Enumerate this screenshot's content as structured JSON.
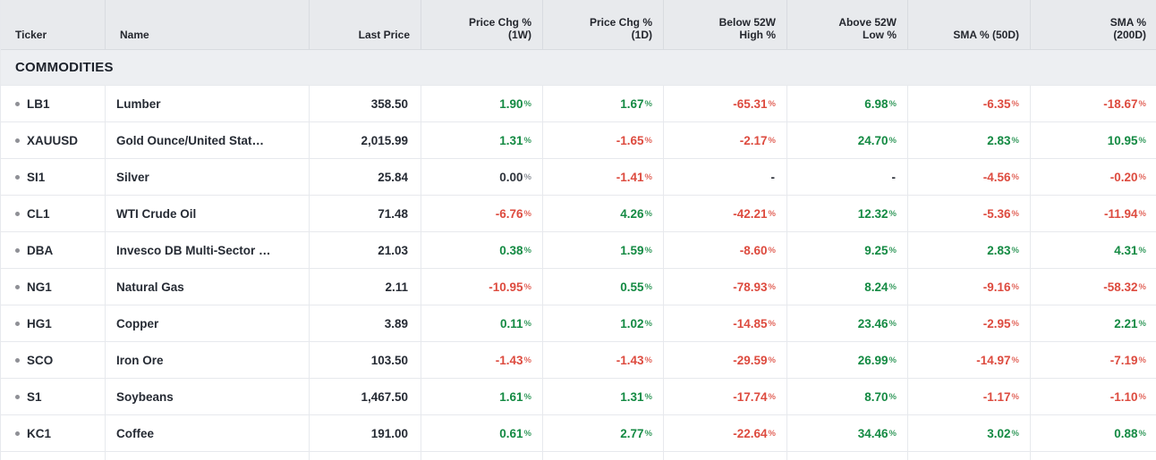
{
  "colors": {
    "positive": "#148a43",
    "negative": "#dd4b3f",
    "neutral": "#30353d"
  },
  "table": {
    "columns": [
      {
        "label": "Ticker",
        "align": "left"
      },
      {
        "label": "Name",
        "align": "left"
      },
      {
        "label": "Last Price",
        "align": "right"
      },
      {
        "label": "Price Chg %\n(1W)",
        "align": "right"
      },
      {
        "label": "Price Chg %\n(1D)",
        "align": "right"
      },
      {
        "label": "Below 52W\nHigh %",
        "align": "right"
      },
      {
        "label": "Above 52W\nLow %",
        "align": "right"
      },
      {
        "label": "SMA % (50D)",
        "align": "right"
      },
      {
        "label": "SMA %\n(200D)",
        "align": "right"
      }
    ],
    "section": "COMMODITIES",
    "rows": [
      {
        "ticker": "LB1",
        "name": "Lumber",
        "last_price": "358.50",
        "metrics": [
          {
            "value": "1.90",
            "unit": "%",
            "trend": "up"
          },
          {
            "value": "1.67",
            "unit": "%",
            "trend": "up"
          },
          {
            "value": "-65.31",
            "unit": "%",
            "trend": "down"
          },
          {
            "value": "6.98",
            "unit": "%",
            "trend": "up"
          },
          {
            "value": "-6.35",
            "unit": "%",
            "trend": "down"
          },
          {
            "value": "-18.67",
            "unit": "%",
            "trend": "down"
          }
        ]
      },
      {
        "ticker": "XAUUSD",
        "name": "Gold Ounce/United Stat…",
        "last_price": "2,015.99",
        "metrics": [
          {
            "value": "1.31",
            "unit": "%",
            "trend": "up"
          },
          {
            "value": "-1.65",
            "unit": "%",
            "trend": "down"
          },
          {
            "value": "-2.17",
            "unit": "%",
            "trend": "down"
          },
          {
            "value": "24.70",
            "unit": "%",
            "trend": "up"
          },
          {
            "value": "2.83",
            "unit": "%",
            "trend": "up"
          },
          {
            "value": "10.95",
            "unit": "%",
            "trend": "up"
          }
        ]
      },
      {
        "ticker": "SI1",
        "name": "Silver",
        "last_price": "25.84",
        "metrics": [
          {
            "value": "0.00",
            "unit": "%",
            "trend": "flat"
          },
          {
            "value": "-1.41",
            "unit": "%",
            "trend": "down"
          },
          {
            "value": "-",
            "unit": "",
            "trend": "none"
          },
          {
            "value": "-",
            "unit": "",
            "trend": "none"
          },
          {
            "value": "-4.56",
            "unit": "%",
            "trend": "down"
          },
          {
            "value": "-0.20",
            "unit": "%",
            "trend": "down"
          }
        ]
      },
      {
        "ticker": "CL1",
        "name": "WTI Crude Oil",
        "last_price": "71.48",
        "metrics": [
          {
            "value": "-6.76",
            "unit": "%",
            "trend": "down"
          },
          {
            "value": "4.26",
            "unit": "%",
            "trend": "up"
          },
          {
            "value": "-42.21",
            "unit": "%",
            "trend": "down"
          },
          {
            "value": "12.32",
            "unit": "%",
            "trend": "up"
          },
          {
            "value": "-5.36",
            "unit": "%",
            "trend": "down"
          },
          {
            "value": "-11.94",
            "unit": "%",
            "trend": "down"
          }
        ]
      },
      {
        "ticker": "DBA",
        "name": "Invesco DB Multi-Sector …",
        "last_price": "21.03",
        "metrics": [
          {
            "value": "0.38",
            "unit": "%",
            "trend": "up"
          },
          {
            "value": "1.59",
            "unit": "%",
            "trend": "up"
          },
          {
            "value": "-8.60",
            "unit": "%",
            "trend": "down"
          },
          {
            "value": "9.25",
            "unit": "%",
            "trend": "up"
          },
          {
            "value": "2.83",
            "unit": "%",
            "trend": "up"
          },
          {
            "value": "4.31",
            "unit": "%",
            "trend": "up"
          }
        ]
      },
      {
        "ticker": "NG1",
        "name": "Natural Gas",
        "last_price": "2.11",
        "metrics": [
          {
            "value": "-10.95",
            "unit": "%",
            "trend": "down"
          },
          {
            "value": "0.55",
            "unit": "%",
            "trend": "up"
          },
          {
            "value": "-78.93",
            "unit": "%",
            "trend": "down"
          },
          {
            "value": "8.24",
            "unit": "%",
            "trend": "up"
          },
          {
            "value": "-9.16",
            "unit": "%",
            "trend": "down"
          },
          {
            "value": "-58.32",
            "unit": "%",
            "trend": "down"
          }
        ]
      },
      {
        "ticker": "HG1",
        "name": "Copper",
        "last_price": "3.89",
        "metrics": [
          {
            "value": "0.11",
            "unit": "%",
            "trend": "up"
          },
          {
            "value": "1.02",
            "unit": "%",
            "trend": "up"
          },
          {
            "value": "-14.85",
            "unit": "%",
            "trend": "down"
          },
          {
            "value": "23.46",
            "unit": "%",
            "trend": "up"
          },
          {
            "value": "-2.95",
            "unit": "%",
            "trend": "down"
          },
          {
            "value": "2.21",
            "unit": "%",
            "trend": "up"
          }
        ]
      },
      {
        "ticker": "SCO",
        "name": "Iron Ore",
        "last_price": "103.50",
        "metrics": [
          {
            "value": "-1.43",
            "unit": "%",
            "trend": "down"
          },
          {
            "value": "-1.43",
            "unit": "%",
            "trend": "down"
          },
          {
            "value": "-29.59",
            "unit": "%",
            "trend": "down"
          },
          {
            "value": "26.99",
            "unit": "%",
            "trend": "up"
          },
          {
            "value": "-14.97",
            "unit": "%",
            "trend": "down"
          },
          {
            "value": "-7.19",
            "unit": "%",
            "trend": "down"
          }
        ]
      },
      {
        "ticker": "S1",
        "name": "Soybeans",
        "last_price": "1,467.50",
        "metrics": [
          {
            "value": "1.61",
            "unit": "%",
            "trend": "up"
          },
          {
            "value": "1.31",
            "unit": "%",
            "trend": "up"
          },
          {
            "value": "-17.74",
            "unit": "%",
            "trend": "down"
          },
          {
            "value": "8.70",
            "unit": "%",
            "trend": "up"
          },
          {
            "value": "-1.17",
            "unit": "%",
            "trend": "down"
          },
          {
            "value": "-1.10",
            "unit": "%",
            "trend": "down"
          }
        ]
      },
      {
        "ticker": "KC1",
        "name": "Coffee",
        "last_price": "191.00",
        "metrics": [
          {
            "value": "0.61",
            "unit": "%",
            "trend": "up"
          },
          {
            "value": "2.77",
            "unit": "%",
            "trend": "up"
          },
          {
            "value": "-22.64",
            "unit": "%",
            "trend": "down"
          },
          {
            "value": "34.46",
            "unit": "%",
            "trend": "up"
          },
          {
            "value": "3.02",
            "unit": "%",
            "trend": "up"
          },
          {
            "value": "0.88",
            "unit": "%",
            "trend": "up"
          }
        ]
      }
    ]
  }
}
